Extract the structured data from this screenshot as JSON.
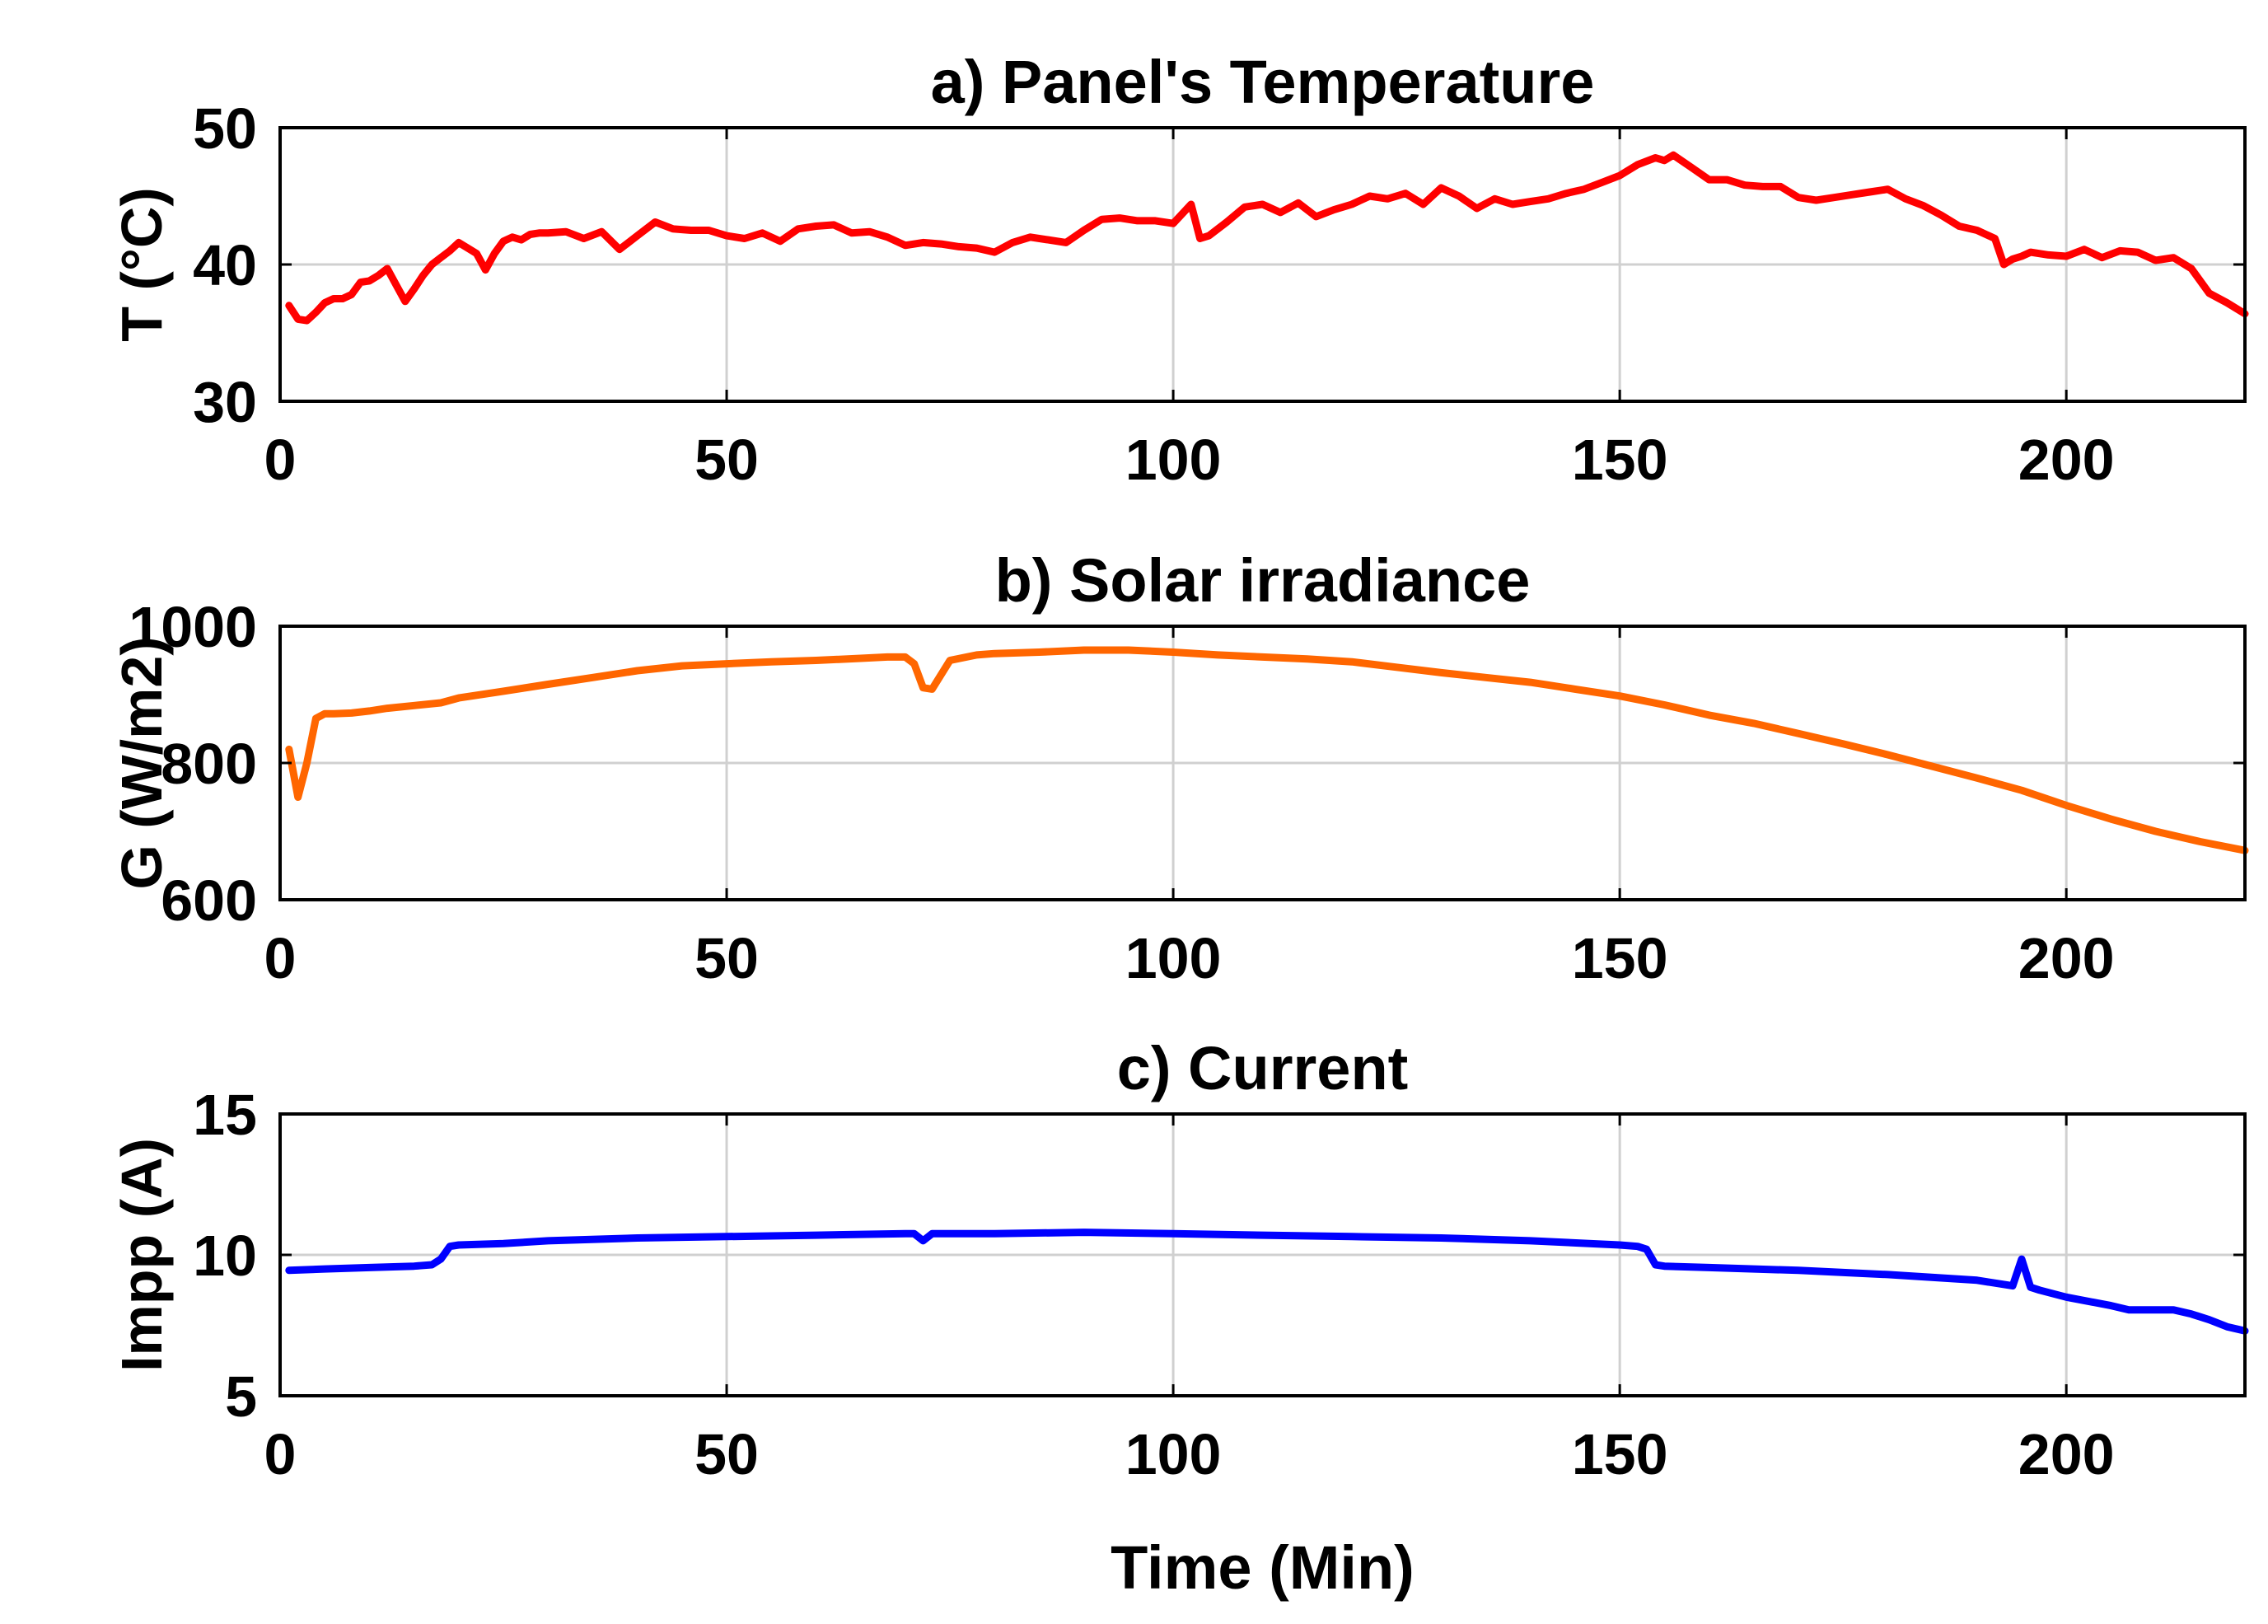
{
  "figure": {
    "xlabel": "Time (Min)"
  },
  "chart_data": [
    {
      "type": "line",
      "title": "a) Panel's Temperature",
      "xlabel": "",
      "ylabel": "T (°C)",
      "xlim": [
        0,
        220
      ],
      "ylim": [
        30,
        50
      ],
      "xticks": [
        0,
        50,
        100,
        150,
        200
      ],
      "yticks": [
        30,
        40,
        50
      ],
      "xtick_labels": [
        "0",
        "50",
        "100",
        "150",
        "200"
      ],
      "ytick_labels": [
        "30",
        "40",
        "50"
      ],
      "grid": true,
      "series": [
        {
          "color": "#ff0000",
          "x": [
            1,
            2,
            3,
            4,
            5,
            6,
            7,
            8,
            9,
            10,
            11,
            12,
            13,
            14,
            15,
            16,
            17,
            18,
            19,
            20,
            21,
            22,
            23,
            24,
            25,
            26,
            27,
            28,
            29,
            30,
            32,
            34,
            36,
            38,
            40,
            42,
            44,
            46,
            48,
            50,
            52,
            54,
            56,
            58,
            60,
            62,
            64,
            66,
            68,
            70,
            72,
            74,
            76,
            78,
            80,
            82,
            84,
            86,
            88,
            90,
            92,
            94,
            96,
            98,
            100,
            102,
            103,
            104,
            106,
            108,
            110,
            112,
            114,
            116,
            118,
            120,
            122,
            124,
            126,
            128,
            130,
            132,
            134,
            136,
            138,
            140,
            142,
            144,
            146,
            148,
            150,
            152,
            154,
            155,
            156,
            158,
            160,
            162,
            164,
            166,
            168,
            170,
            172,
            174,
            176,
            178,
            180,
            182,
            184,
            186,
            188,
            190,
            192,
            193,
            194,
            195,
            196,
            198,
            200,
            202,
            204,
            206,
            208,
            210,
            212,
            214,
            216,
            218,
            220
          ],
          "values": [
            37.0,
            36.0,
            35.9,
            36.5,
            37.2,
            37.5,
            37.5,
            37.8,
            38.7,
            38.8,
            39.2,
            39.7,
            38.5,
            37.3,
            38.2,
            39.2,
            40.0,
            40.5,
            41.0,
            41.6,
            41.2,
            40.8,
            39.6,
            40.8,
            41.7,
            42.0,
            41.8,
            42.2,
            42.3,
            42.3,
            42.4,
            41.9,
            42.4,
            41.1,
            42.1,
            43.1,
            42.6,
            42.5,
            42.5,
            42.1,
            41.9,
            42.3,
            41.7,
            42.6,
            42.8,
            42.9,
            42.3,
            42.4,
            42.0,
            41.4,
            41.6,
            41.5,
            41.3,
            41.2,
            40.9,
            41.6,
            42.0,
            41.8,
            41.6,
            42.5,
            43.3,
            43.4,
            43.2,
            43.2,
            43.0,
            44.4,
            41.9,
            42.1,
            43.1,
            44.2,
            44.4,
            43.8,
            44.5,
            43.5,
            44.0,
            44.4,
            45.0,
            44.8,
            45.2,
            44.4,
            45.6,
            45.0,
            44.1,
            44.8,
            44.4,
            44.6,
            44.8,
            45.2,
            45.5,
            46.0,
            46.5,
            47.3,
            47.8,
            47.6,
            48.0,
            47.1,
            46.2,
            46.2,
            45.8,
            45.7,
            45.7,
            44.9,
            44.7,
            44.9,
            45.1,
            45.3,
            45.5,
            44.8,
            44.3,
            43.6,
            42.8,
            42.5,
            41.9,
            40.0,
            40.4,
            40.6,
            40.9,
            40.7,
            40.6,
            41.1,
            40.5,
            41.0,
            40.9,
            40.3,
            40.5,
            39.7,
            37.9,
            37.2,
            36.4
          ]
        }
      ]
    },
    {
      "type": "line",
      "title": "b) Solar irradiance",
      "xlabel": "",
      "ylabel": "G (W/m2)",
      "xlim": [
        0,
        220
      ],
      "ylim": [
        600,
        1000
      ],
      "xticks": [
        0,
        50,
        100,
        150,
        200
      ],
      "yticks": [
        600,
        800,
        1000
      ],
      "xtick_labels": [
        "0",
        "50",
        "100",
        "150",
        "200"
      ],
      "ytick_labels": [
        "600",
        "800",
        "1000"
      ],
      "grid": true,
      "series": [
        {
          "color": "#ff6600",
          "x": [
            1,
            2,
            3,
            4,
            5,
            6,
            8,
            10,
            12,
            15,
            18,
            20,
            25,
            30,
            35,
            40,
            45,
            50,
            55,
            60,
            65,
            68,
            70,
            71,
            72,
            73,
            75,
            78,
            80,
            85,
            90,
            95,
            100,
            105,
            110,
            115,
            120,
            125,
            130,
            135,
            140,
            145,
            150,
            155,
            160,
            165,
            170,
            175,
            180,
            185,
            190,
            195,
            200,
            205,
            210,
            215,
            220
          ],
          "values": [
            820,
            750,
            800,
            865,
            872,
            872,
            873,
            876,
            880,
            884,
            888,
            895,
            905,
            915,
            925,
            935,
            942,
            945,
            948,
            950,
            953,
            955,
            955,
            945,
            910,
            908,
            950,
            958,
            960,
            962,
            965,
            965,
            962,
            958,
            955,
            952,
            948,
            940,
            932,
            925,
            918,
            908,
            898,
            885,
            870,
            858,
            843,
            828,
            812,
            795,
            778,
            760,
            738,
            718,
            700,
            685,
            672
          ]
        }
      ]
    },
    {
      "type": "line",
      "title": "c) Current",
      "xlabel": "Time (Min)",
      "ylabel": "Impp (A)",
      "xlim": [
        0,
        220
      ],
      "ylim": [
        5,
        15
      ],
      "xticks": [
        0,
        50,
        100,
        150,
        200
      ],
      "yticks": [
        5,
        10,
        15
      ],
      "xtick_labels": [
        "0",
        "50",
        "100",
        "150",
        "200"
      ],
      "ytick_labels": [
        "5",
        "10",
        "15"
      ],
      "grid": true,
      "series": [
        {
          "color": "#0000ff",
          "x": [
            1,
            5,
            10,
            15,
            17,
            18,
            19,
            20,
            25,
            30,
            40,
            50,
            60,
            70,
            71,
            72,
            73,
            75,
            80,
            90,
            100,
            110,
            120,
            130,
            140,
            150,
            152,
            153,
            154,
            155,
            160,
            170,
            180,
            190,
            194,
            195,
            196,
            197,
            200,
            205,
            207,
            210,
            212,
            214,
            216,
            218,
            220
          ],
          "values": [
            9.45,
            9.5,
            9.55,
            9.6,
            9.65,
            9.85,
            10.3,
            10.35,
            10.4,
            10.5,
            10.6,
            10.65,
            10.7,
            10.75,
            10.75,
            10.5,
            10.75,
            10.75,
            10.75,
            10.8,
            10.75,
            10.7,
            10.65,
            10.6,
            10.5,
            10.35,
            10.3,
            10.2,
            9.65,
            9.6,
            9.55,
            9.45,
            9.3,
            9.1,
            8.9,
            9.85,
            8.85,
            8.75,
            8.5,
            8.2,
            8.05,
            8.05,
            8.05,
            7.9,
            7.7,
            7.45,
            7.3
          ]
        }
      ]
    }
  ]
}
